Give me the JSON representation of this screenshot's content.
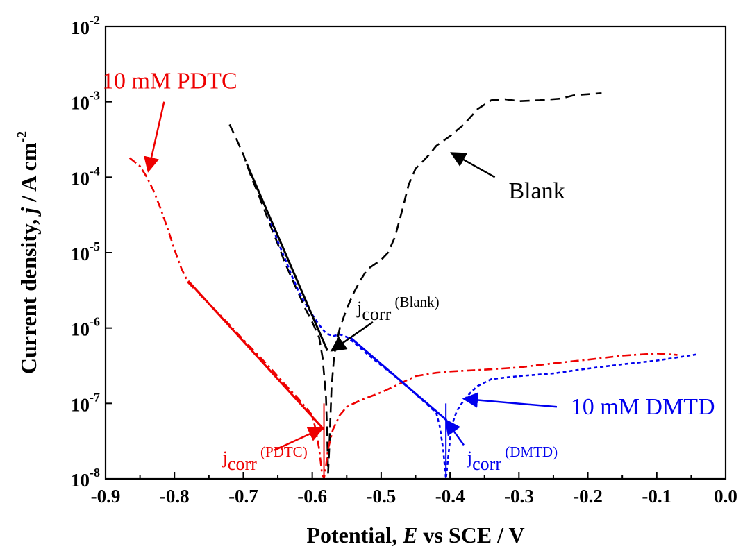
{
  "chart_data": {
    "type": "line",
    "xlabel": {
      "prefix": "Potential, ",
      "italic": "E",
      "suffix": " vs SCE / V"
    },
    "ylabel": {
      "prefix": "Current density, ",
      "italic": "j",
      "suffix": " / A cm",
      "sup": "-2"
    },
    "xlim": [
      -0.9,
      0.0
    ],
    "ylim_log10": [
      -8,
      -2
    ],
    "y_scale": "log",
    "x_ticks": [
      -0.9,
      -0.8,
      -0.7,
      -0.6,
      -0.5,
      -0.4,
      -0.3,
      -0.2,
      -0.1,
      0.0
    ],
    "x_tick_labels": [
      "-0.9",
      "-0.8",
      "-0.7",
      "-0.6",
      "-0.5",
      "-0.4",
      "-0.3",
      "-0.2",
      "-0.1",
      "0.0"
    ],
    "y_ticks": [
      {
        "base": "10",
        "exp": "-8"
      },
      {
        "base": "10",
        "exp": "-7"
      },
      {
        "base": "10",
        "exp": "-6"
      },
      {
        "base": "10",
        "exp": "-5"
      },
      {
        "base": "10",
        "exp": "-4"
      },
      {
        "base": "10",
        "exp": "-3"
      },
      {
        "base": "10",
        "exp": "-2"
      }
    ],
    "grid": false,
    "series": [
      {
        "name": "Blank",
        "color": "#000000",
        "style": "dashed",
        "points": [
          [
            -0.72,
            0.0005
          ],
          [
            -0.71,
            0.00032
          ],
          [
            -0.7,
            0.0002
          ],
          [
            -0.69,
            0.00011
          ],
          [
            -0.68,
            6.5e-05
          ],
          [
            -0.67,
            3.8e-05
          ],
          [
            -0.66,
            2.2e-05
          ],
          [
            -0.65,
            1.3e-05
          ],
          [
            -0.64,
            7.5e-06
          ],
          [
            -0.63,
            4.6e-06
          ],
          [
            -0.62,
            2.9e-06
          ],
          [
            -0.61,
            1.8e-06
          ],
          [
            -0.6,
            1.2e-06
          ],
          [
            -0.59,
            7.5e-07
          ],
          [
            -0.585,
            4e-07
          ],
          [
            -0.58,
            1.2e-07
          ],
          [
            -0.578,
            3e-08
          ],
          [
            -0.577,
            1.2e-08
          ],
          [
            -0.575,
            3e-08
          ],
          [
            -0.572,
            1.6e-07
          ],
          [
            -0.568,
            4.5e-07
          ],
          [
            -0.56,
            1e-06
          ],
          [
            -0.55,
            1.8e-06
          ],
          [
            -0.54,
            2.9e-06
          ],
          [
            -0.53,
            4.3e-06
          ],
          [
            -0.52,
            6e-06
          ],
          [
            -0.5,
            8e-06
          ],
          [
            -0.49,
            1e-05
          ],
          [
            -0.48,
            1.6e-05
          ],
          [
            -0.47,
            3.5e-05
          ],
          [
            -0.46,
            8e-05
          ],
          [
            -0.45,
            0.00013
          ],
          [
            -0.44,
            0.00016
          ],
          [
            -0.43,
            0.0002
          ],
          [
            -0.42,
            0.00026
          ],
          [
            -0.4,
            0.00035
          ],
          [
            -0.38,
            0.0005
          ],
          [
            -0.36,
            0.0008
          ],
          [
            -0.34,
            0.00105
          ],
          [
            -0.32,
            0.00108
          ],
          [
            -0.3,
            0.00102
          ],
          [
            -0.27,
            0.00105
          ],
          [
            -0.24,
            0.0011
          ],
          [
            -0.22,
            0.00122
          ],
          [
            -0.18,
            0.0013
          ]
        ]
      },
      {
        "name": "10 mM DMTD",
        "color": "#0000ee",
        "style": "dotted",
        "points": [
          [
            -0.665,
            3.5e-05
          ],
          [
            -0.66,
            2.5e-05
          ],
          [
            -0.65,
            1.4e-05
          ],
          [
            -0.64,
            8.5e-06
          ],
          [
            -0.63,
            5e-06
          ],
          [
            -0.62,
            3.1e-06
          ],
          [
            -0.61,
            2.1e-06
          ],
          [
            -0.6,
            1.5e-06
          ],
          [
            -0.59,
            1.1e-06
          ],
          [
            -0.58,
            8.5e-07
          ],
          [
            -0.57,
            7.8e-07
          ],
          [
            -0.56,
            8.2e-07
          ],
          [
            -0.55,
            7.6e-07
          ],
          [
            -0.54,
            6.5e-07
          ],
          [
            -0.53,
            5.4e-07
          ],
          [
            -0.52,
            4.5e-07
          ],
          [
            -0.5,
            3.2e-07
          ],
          [
            -0.48,
            2.3e-07
          ],
          [
            -0.46,
            1.6e-07
          ],
          [
            -0.44,
            1.1e-07
          ],
          [
            -0.42,
            7.5e-08
          ],
          [
            -0.415,
            5e-08
          ],
          [
            -0.41,
            2.5e-08
          ],
          [
            -0.406,
            1e-08
          ],
          [
            -0.402,
            2.2e-08
          ],
          [
            -0.398,
            5e-08
          ],
          [
            -0.39,
            8e-08
          ],
          [
            -0.38,
            1.1e-07
          ],
          [
            -0.37,
            1.4e-07
          ],
          [
            -0.36,
            1.7e-07
          ],
          [
            -0.34,
            2.1e-07
          ],
          [
            -0.32,
            2.2e-07
          ],
          [
            -0.3,
            2.3e-07
          ],
          [
            -0.25,
            2.5e-07
          ],
          [
            -0.2,
            2.9e-07
          ],
          [
            -0.15,
            3.3e-07
          ],
          [
            -0.1,
            3.7e-07
          ],
          [
            -0.04,
            4.5e-07
          ]
        ]
      },
      {
        "name": "10 mM PDTC",
        "color": "#ee0000",
        "style": "dash-dot",
        "points": [
          [
            -0.865,
            0.00018
          ],
          [
            -0.85,
            0.00014
          ],
          [
            -0.84,
            0.0001
          ],
          [
            -0.83,
            6.5e-05
          ],
          [
            -0.82,
            3.8e-05
          ],
          [
            -0.81,
            2.1e-05
          ],
          [
            -0.8,
            1.1e-05
          ],
          [
            -0.79,
            6.2e-06
          ],
          [
            -0.78,
            4e-06
          ],
          [
            -0.76,
            2.6e-06
          ],
          [
            -0.74,
            1.7e-06
          ],
          [
            -0.72,
            1.1e-06
          ],
          [
            -0.7,
            7e-07
          ],
          [
            -0.68,
            4.5e-07
          ],
          [
            -0.66,
            2.9e-07
          ],
          [
            -0.64,
            1.8e-07
          ],
          [
            -0.62,
            1.15e-07
          ],
          [
            -0.6,
            7e-08
          ],
          [
            -0.595,
            4.5e-08
          ],
          [
            -0.59,
            2.5e-08
          ],
          [
            -0.586,
            1.2e-08
          ],
          [
            -0.583,
            1e-08
          ],
          [
            -0.58,
            1.5e-08
          ],
          [
            -0.577,
            2.5e-08
          ],
          [
            -0.57,
            4.5e-08
          ],
          [
            -0.56,
            7e-08
          ],
          [
            -0.55,
            9e-08
          ],
          [
            -0.53,
            1.1e-07
          ],
          [
            -0.5,
            1.4e-07
          ],
          [
            -0.48,
            1.7e-07
          ],
          [
            -0.45,
            2.3e-07
          ],
          [
            -0.42,
            2.55e-07
          ],
          [
            -0.4,
            2.65e-07
          ],
          [
            -0.35,
            2.8e-07
          ],
          [
            -0.3,
            3e-07
          ],
          [
            -0.25,
            3.4e-07
          ],
          [
            -0.2,
            3.8e-07
          ],
          [
            -0.15,
            4.3e-07
          ],
          [
            -0.1,
            4.6e-07
          ],
          [
            -0.07,
            4.4e-07
          ]
        ]
      }
    ],
    "tafel_lines": [
      {
        "color": "#000000",
        "points": [
          [
            -0.695,
            0.00015
          ],
          [
            -0.578,
            5e-07
          ]
        ]
      },
      {
        "color": "#0000ee",
        "points": [
          [
            -0.545,
            7.5e-07
          ],
          [
            -0.405,
            6e-08
          ]
        ]
      },
      {
        "color": "#ee0000",
        "points": [
          [
            -0.78,
            4.2e-06
          ],
          [
            -0.583,
            4.5e-08
          ]
        ]
      }
    ],
    "jcorr_markers": [
      {
        "color": "#ee0000",
        "x": -0.583,
        "y_top": 1e-07
      },
      {
        "color": "#0000ee",
        "x": -0.406,
        "y_top": 1e-07
      }
    ],
    "annotations": [
      {
        "id": "pdtc",
        "text": "10 mM PDTC",
        "color": "#ee0000",
        "x": -0.905,
        "y": 0.0015,
        "size": 34,
        "arrow_from": [
          -0.815,
          0.001
        ],
        "arrow_to": [
          -0.838,
          0.00012
        ]
      },
      {
        "id": "blank",
        "text": "Blank",
        "color": "#000000",
        "x": -0.315,
        "y": 5.2e-05,
        "size": 34,
        "arrow_from": [
          -0.335,
          0.0001
        ],
        "arrow_to": [
          -0.398,
          0.00021
        ]
      },
      {
        "id": "dmtd",
        "text": "10 mM DMTD",
        "color": "#0000ee",
        "x": -0.225,
        "y": 7.2e-08,
        "size": 34,
        "arrow_from": [
          -0.245,
          9e-08
        ],
        "arrow_to": [
          -0.38,
          1.15e-07
        ]
      }
    ],
    "jcorr_labels": [
      {
        "id": "jcorr-blank",
        "base": "j",
        "sub": "corr",
        "tag": " (Blank)",
        "color": "#000000",
        "x": -0.535,
        "y": 1.55e-06,
        "arrow_from": [
          -0.512,
          1.2e-06
        ],
        "arrow_to": [
          -0.572,
          5e-07
        ]
      },
      {
        "id": "jcorr-pdtc",
        "base": "j",
        "sub": "corr",
        "tag": " (PDTC)",
        "color": "#ee0000",
        "x": -0.73,
        "y": 1.6e-08,
        "arrow_from": [
          -0.655,
          2.4e-08
        ],
        "arrow_to": [
          -0.585,
          4.7e-08
        ]
      },
      {
        "id": "jcorr-dmtd",
        "base": "j",
        "sub": "corr",
        "tag": " (DMTD)",
        "color": "#0000ee",
        "x": -0.375,
        "y": 1.6e-08,
        "arrow_from": [
          -0.38,
          2.8e-08
        ],
        "arrow_to": [
          -0.406,
          6e-08
        ]
      }
    ]
  }
}
